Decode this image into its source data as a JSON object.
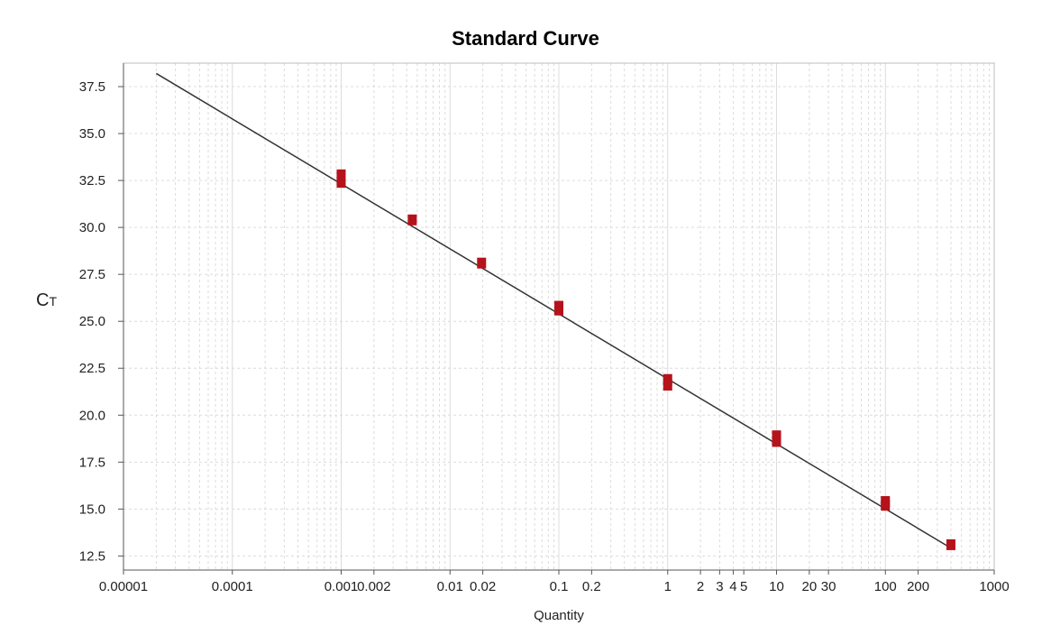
{
  "chart_data": {
    "type": "scatter",
    "title": "Standard Curve",
    "xlabel": "Quantity",
    "ylabel": "C",
    "ylabel_subscript": "T",
    "x_scale": "log",
    "xlim": [
      1e-05,
      1000
    ],
    "ylim": [
      11.75,
      38.75
    ],
    "grid": true,
    "x_ticks": [
      {
        "value": 1e-05,
        "label": "0.00001"
      },
      {
        "value": 0.0001,
        "label": "0.0001"
      },
      {
        "value": 0.001,
        "label": "0.001"
      },
      {
        "value": 0.002,
        "label": "0.002"
      },
      {
        "value": 0.01,
        "label": "0.01"
      },
      {
        "value": 0.02,
        "label": "0.02"
      },
      {
        "value": 0.1,
        "label": "0.1"
      },
      {
        "value": 0.2,
        "label": "0.2"
      },
      {
        "value": 1,
        "label": "1"
      },
      {
        "value": 2,
        "label": "2"
      },
      {
        "value": 3,
        "label": "3"
      },
      {
        "value": 4,
        "label": "4"
      },
      {
        "value": 5,
        "label": "5"
      },
      {
        "value": 10,
        "label": "10"
      },
      {
        "value": 20,
        "label": "20"
      },
      {
        "value": 30,
        "label": "30"
      },
      {
        "value": 100,
        "label": "100"
      },
      {
        "value": 200,
        "label": "200"
      },
      {
        "value": 1000,
        "label": "1000"
      }
    ],
    "y_ticks": [
      {
        "value": 12.5,
        "label": "12.5"
      },
      {
        "value": 15.0,
        "label": "15.0"
      },
      {
        "value": 17.5,
        "label": "17.5"
      },
      {
        "value": 20.0,
        "label": "20.0"
      },
      {
        "value": 22.5,
        "label": "22.5"
      },
      {
        "value": 25.0,
        "label": "25.0"
      },
      {
        "value": 27.5,
        "label": "27.5"
      },
      {
        "value": 30.0,
        "label": "30.0"
      },
      {
        "value": 32.5,
        "label": "32.5"
      },
      {
        "value": 35.0,
        "label": "35.0"
      },
      {
        "value": 37.5,
        "label": "37.5"
      }
    ],
    "series": [
      {
        "type": "scatter",
        "marker": "square",
        "color": "#b5121b",
        "points": [
          {
            "x": 0.001,
            "y": 32.4
          },
          {
            "x": 0.001,
            "y": 32.8
          },
          {
            "x": 0.0045,
            "y": 30.4
          },
          {
            "x": 0.0195,
            "y": 28.1
          },
          {
            "x": 0.1,
            "y": 25.6
          },
          {
            "x": 0.1,
            "y": 25.8
          },
          {
            "x": 1,
            "y": 21.6
          },
          {
            "x": 1,
            "y": 21.9
          },
          {
            "x": 10,
            "y": 18.6
          },
          {
            "x": 10,
            "y": 18.9
          },
          {
            "x": 100,
            "y": 15.2
          },
          {
            "x": 100,
            "y": 15.4
          },
          {
            "x": 400,
            "y": 13.1
          }
        ]
      },
      {
        "type": "line",
        "color": "#333333",
        "points": [
          {
            "x": 2e-05,
            "y": 38.2
          },
          {
            "x": 420,
            "y": 12.85
          }
        ]
      }
    ]
  }
}
